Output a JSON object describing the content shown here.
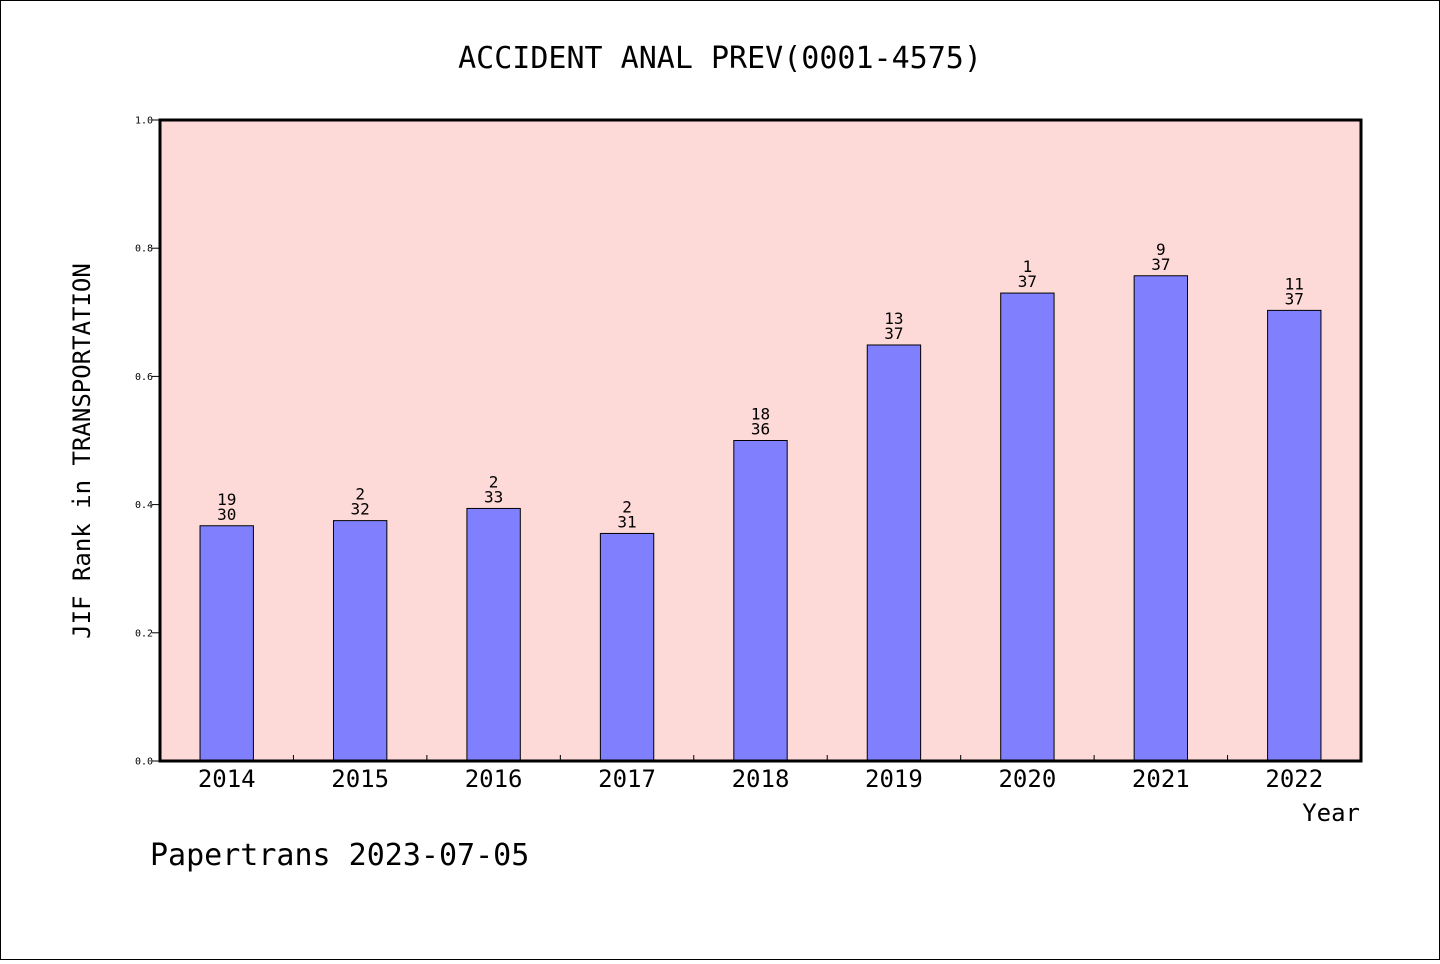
{
  "chart_data": {
    "type": "bar",
    "title": "ACCIDENT ANAL PREV(0001-4575)",
    "xlabel": "Year",
    "ylabel": "JIF Rank in TRANSPORTATION",
    "ylim": [
      0,
      1.0
    ],
    "yticks": [
      "0.0",
      "0.2",
      "0.4",
      "0.6",
      "0.8",
      "1.0"
    ],
    "categories": [
      "2014",
      "2015",
      "2016",
      "2017",
      "2018",
      "2019",
      "2020",
      "2021",
      "2022"
    ],
    "values": [
      0.367,
      0.375,
      0.394,
      0.355,
      0.5,
      0.649,
      0.73,
      0.757,
      0.703
    ],
    "rank_labels": [
      {
        "rank": "19",
        "total": "30"
      },
      {
        "rank": "2",
        "total": "32"
      },
      {
        "rank": "2",
        "total": "33"
      },
      {
        "rank": "2",
        "total": "31"
      },
      {
        "rank": "18",
        "total": "36"
      },
      {
        "rank": "13",
        "total": "37"
      },
      {
        "rank": "1",
        "total": "37"
      },
      {
        "rank": "9",
        "total": "37"
      },
      {
        "rank": "11",
        "total": "37"
      }
    ],
    "grid": false,
    "colors": {
      "plot_background": "#fdd9d7",
      "bar_fill": "#8080ff",
      "bar_stroke": "#000000"
    }
  },
  "footer": "Papertrans 2023-07-05"
}
